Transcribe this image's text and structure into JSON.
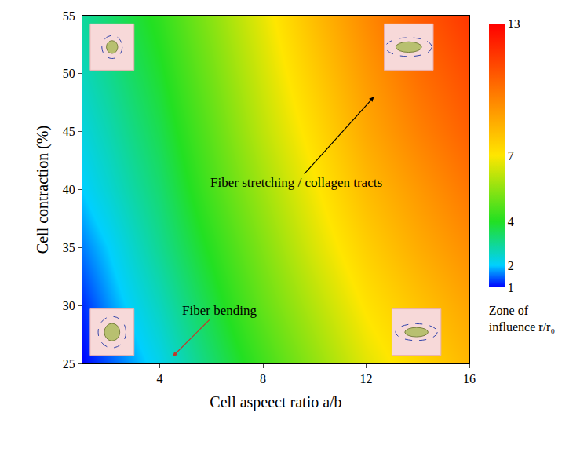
{
  "chart_data": {
    "type": "heatmap",
    "x_label": "Cell aspeect ratio a/b",
    "y_label": "Cell contraction (%)",
    "x": [
      1,
      2,
      4,
      6,
      8,
      10,
      12,
      14,
      16
    ],
    "y": [
      25,
      30,
      35,
      40,
      45,
      50,
      55
    ],
    "z": [
      [
        1.0,
        1.4,
        2.2,
        3.3,
        4.4,
        5.5,
        6.6,
        7.4,
        8.2
      ],
      [
        1.2,
        1.7,
        2.6,
        3.7,
        4.9,
        6.0,
        7.1,
        7.9,
        8.7
      ],
      [
        1.6,
        2.0,
        3.0,
        4.1,
        5.3,
        6.5,
        7.6,
        8.5,
        9.3
      ],
      [
        2.0,
        2.4,
        3.3,
        4.5,
        5.7,
        6.9,
        8.1,
        9.0,
        9.9
      ],
      [
        2.3,
        2.7,
        3.6,
        4.8,
        6.1,
        7.3,
        8.6,
        9.6,
        10.5
      ],
      [
        2.6,
        3.0,
        3.9,
        5.1,
        6.4,
        7.7,
        9.0,
        10.1,
        11.0
      ],
      [
        2.9,
        3.3,
        4.2,
        5.4,
        6.7,
        8.1,
        9.4,
        10.6,
        11.6
      ]
    ],
    "xlim": [
      1,
      16
    ],
    "ylim": [
      25,
      55
    ],
    "xticks": [
      4,
      8,
      12,
      16
    ],
    "yticks": [
      25,
      30,
      35,
      40,
      45,
      50,
      55
    ],
    "colorbar": {
      "title": "Zone of influence r/r₀",
      "range": [
        1,
        13
      ],
      "ticks": [
        1,
        2,
        4,
        7,
        13
      ]
    },
    "annotations": [
      {
        "text": "Fiber stretching / collagen tracts"
      },
      {
        "text": "Fiber bending"
      }
    ]
  }
}
